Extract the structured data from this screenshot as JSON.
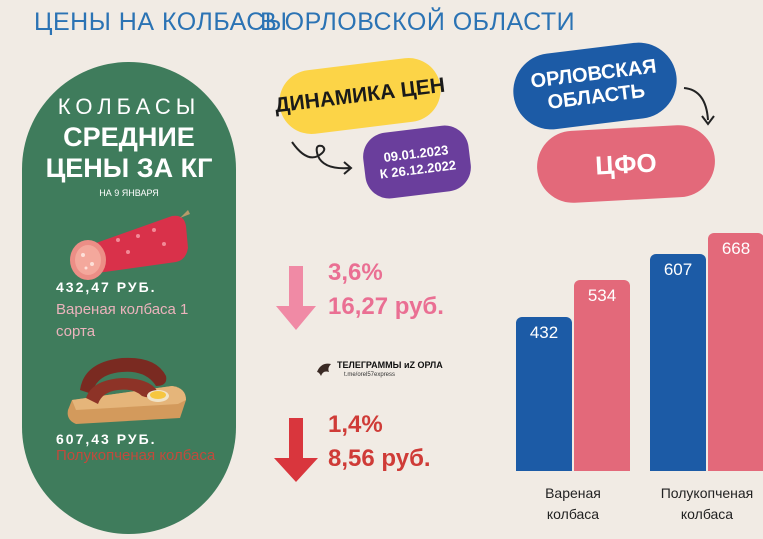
{
  "header": {
    "title_left": "ЦЕНЫ НА КОЛБАСЫ",
    "title_right": "В ОРЛОВСКОЙ ОБЛАСТИ"
  },
  "pill": {
    "category": "КОЛБАСЫ",
    "heading_line1": "СРЕДНИЕ",
    "heading_line2": "ЦЕНЫ ЗА КГ",
    "date": "НА 9 ЯНВАРЯ",
    "item1_price": "432,47 РУБ.",
    "item1_name": "Вареная колбаса 1 сорта",
    "item2_price": "607,43 РУБ.",
    "item2_name": "Полукопченая колбаса"
  },
  "dynamics": {
    "badge": "ДИНАМИКА ЦЕН",
    "period_line1": "09.01.2023",
    "period_line2": "К 26.12.2022",
    "item1_pct": "3,6%",
    "item1_rub": "16,27 руб.",
    "item2_pct": "1,4%",
    "item2_rub": "8,56 руб."
  },
  "watermark": {
    "title": "ТЕЛЕГРАММЫ иZ ОРЛА",
    "sub": "t.me/orel57express"
  },
  "legend": {
    "region": "ОРЛОВСКАЯ ОБЛАСТЬ",
    "federal": "ЦФО"
  },
  "colors": {
    "blue": "#1c5ba6",
    "pink": "#e3697a",
    "green": "#3f7c5c",
    "yellow": "#fcd447",
    "purple": "#6a3e9c",
    "arrow_light": "#f08aa5",
    "arrow_dark": "#d9363d"
  },
  "chart_data": {
    "type": "bar",
    "categories": [
      "Вареная колбаса",
      "Полукопченая колбаса"
    ],
    "series": [
      {
        "name": "ОРЛОВСКАЯ ОБЛАСТЬ",
        "values": [
          432,
          607
        ]
      },
      {
        "name": "ЦФО",
        "values": [
          534,
          668
        ]
      }
    ],
    "ylim": [
      0,
      720
    ],
    "grid": false,
    "legend": "top-right"
  }
}
